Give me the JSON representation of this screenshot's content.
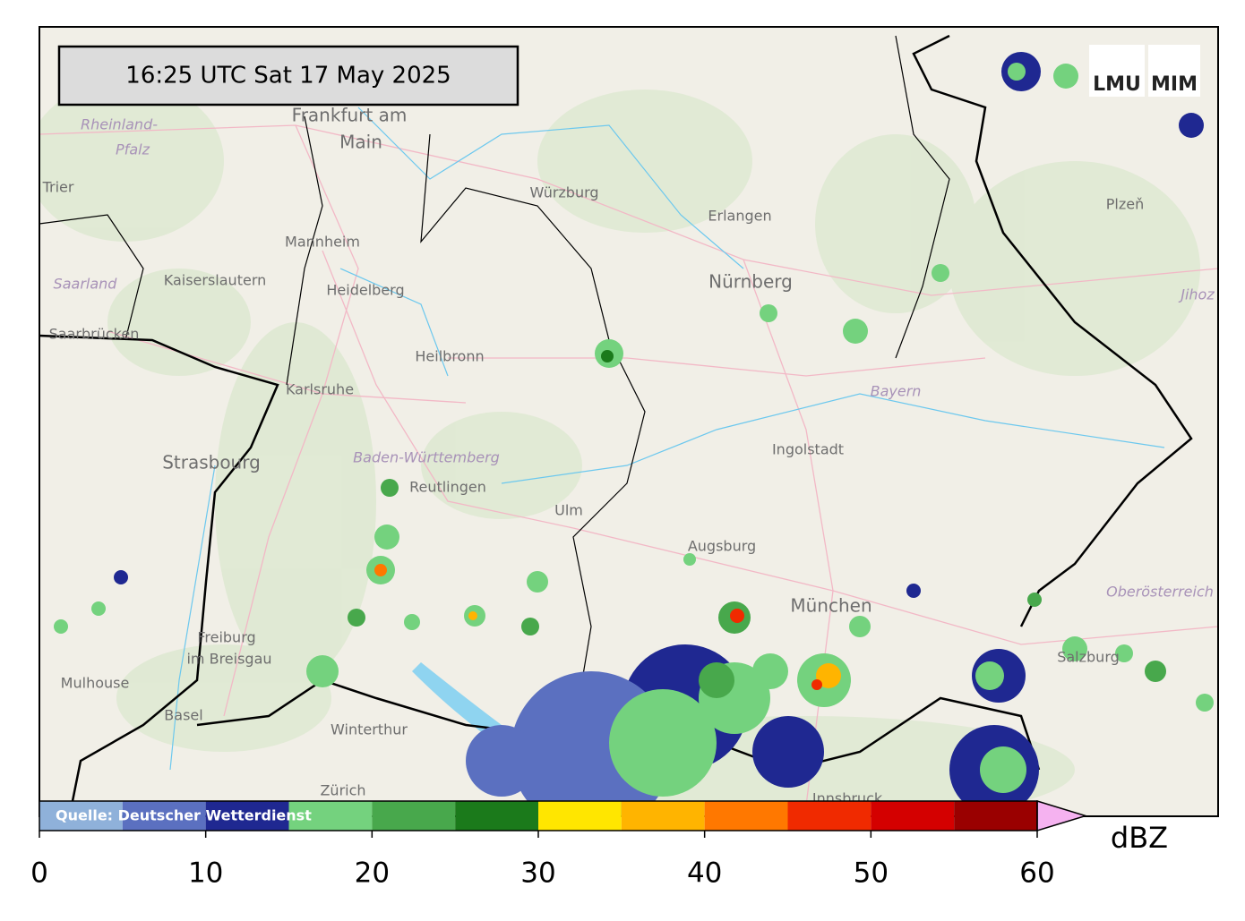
{
  "timestamp": "16:25 UTC  Sat 17 May 2025",
  "source": "Quelle: Deutscher Wetterdienst",
  "logo": [
    "LMU",
    "MIM"
  ],
  "colorbar": {
    "bounds": [
      0,
      5,
      10,
      15,
      20,
      25,
      30,
      35,
      40,
      45,
      50,
      55,
      60
    ],
    "colors": [
      "#8fb1da",
      "#5b70c0",
      "#1f2891",
      "#74d27e",
      "#48a84c",
      "#1b7a1b",
      "#ffe600",
      "#ffb400",
      "#ff7800",
      "#f02a00",
      "#d40000",
      "#9a0000"
    ],
    "over_color": "#f5b2f0",
    "ticks": [
      0,
      10,
      20,
      30,
      40,
      50,
      60
    ],
    "unit": "dBZ"
  },
  "places": [
    {
      "label": "Frankfurt am"
    },
    {
      "label": "Main"
    },
    {
      "label": "Rheinland-"
    },
    {
      "label": "Pfalz"
    },
    {
      "label": "Trier"
    },
    {
      "label": "Würzburg"
    },
    {
      "label": "Erlangen"
    },
    {
      "label": "Nürnberg"
    },
    {
      "label": "Plzeň"
    },
    {
      "label": "Mannheim"
    },
    {
      "label": "Kaiserslautern"
    },
    {
      "label": "Saarland"
    },
    {
      "label": "Heidelberg"
    },
    {
      "label": "Saarbrücken"
    },
    {
      "label": "Heilbronn"
    },
    {
      "label": "Karlsruhe"
    },
    {
      "label": "Bayern"
    },
    {
      "label": "Ingolstadt"
    },
    {
      "label": "Strasbourg"
    },
    {
      "label": "Baden-Württemberg"
    },
    {
      "label": "Reutlingen"
    },
    {
      "label": "Ulm"
    },
    {
      "label": "Augsburg"
    },
    {
      "label": "München"
    },
    {
      "label": "Oberösterreich"
    },
    {
      "label": "Freiburg"
    },
    {
      "label": "im Breisgau"
    },
    {
      "label": "Mulhouse"
    },
    {
      "label": "Basel"
    },
    {
      "label": "Winterthur"
    },
    {
      "label": "Zürich"
    },
    {
      "label": "Innsbruck"
    },
    {
      "label": "Salzburg"
    },
    {
      "label": "Jihoz"
    }
  ]
}
